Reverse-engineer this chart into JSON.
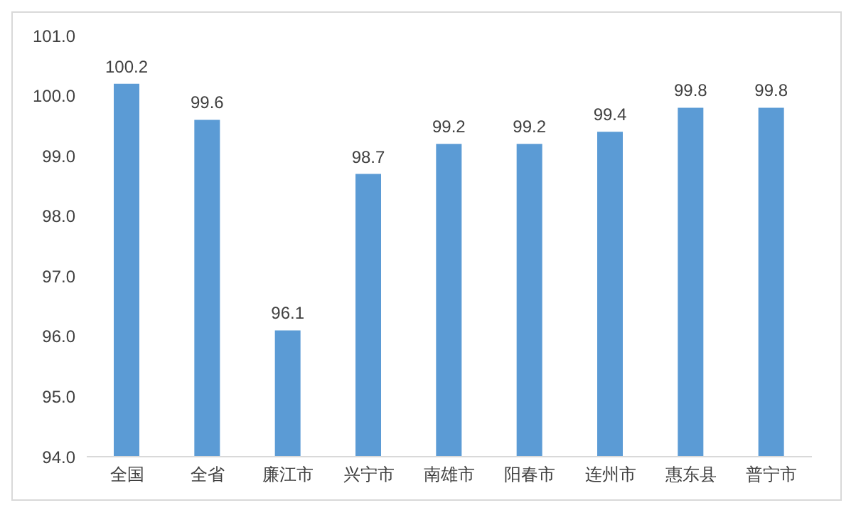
{
  "chart_data": {
    "type": "bar",
    "categories": [
      "全国",
      "全省",
      "廉江市",
      "兴宁市",
      "南雄市",
      "阳春市",
      "连州市",
      "惠东县",
      "普宁市"
    ],
    "values": [
      100.2,
      99.6,
      96.1,
      98.7,
      99.2,
      99.2,
      99.4,
      99.8,
      99.8
    ],
    "color": "#5b9bd5",
    "ylim": [
      94,
      101
    ],
    "yticks": [
      {
        "value": 94,
        "label": "94.0"
      },
      {
        "value": 95,
        "label": "95.0"
      },
      {
        "value": 96,
        "label": "96.0"
      },
      {
        "value": 97,
        "label": "97.0"
      },
      {
        "value": 98,
        "label": "98.0"
      },
      {
        "value": 99,
        "label": "99.0"
      },
      {
        "value": 100,
        "label": "100.0"
      },
      {
        "value": 101,
        "label": "101.0"
      }
    ],
    "data_labels": true
  }
}
